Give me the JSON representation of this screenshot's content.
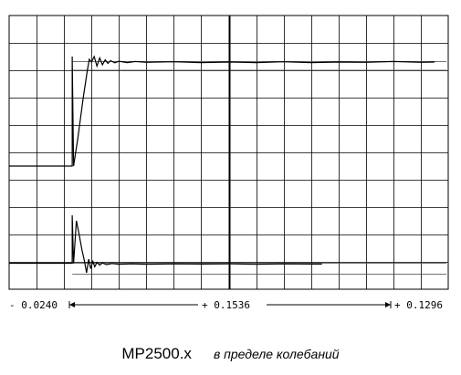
{
  "caption": {
    "model": "MP2500.x",
    "description": "в пределе колебаний"
  },
  "chart_data": {
    "type": "line",
    "grid": true,
    "grid_columns": 16,
    "grid_rows": 10,
    "cursor_division": 8,
    "time_axis": {
      "left_label": "- 0.0240",
      "cursor_label": "+ 0.1536",
      "right_label": "+ 0.1296"
    },
    "series": [
      {
        "ref_levels": [
          8.0,
          8.32
        ],
        "data": [
          [
            0,
            4.5
          ],
          [
            2.3,
            4.5
          ],
          [
            2.3,
            8.5
          ],
          [
            2.35,
            4.5
          ],
          [
            2.5,
            5.5
          ],
          [
            2.7,
            7.0
          ],
          [
            2.85,
            8.0
          ],
          [
            2.92,
            8.4
          ],
          [
            3.0,
            8.3
          ],
          [
            3.1,
            8.5
          ],
          [
            3.2,
            8.15
          ],
          [
            3.3,
            8.45
          ],
          [
            3.4,
            8.2
          ],
          [
            3.5,
            8.38
          ],
          [
            3.6,
            8.25
          ],
          [
            3.7,
            8.35
          ],
          [
            3.85,
            8.27
          ],
          [
            4.0,
            8.33
          ],
          [
            4.3,
            8.28
          ],
          [
            4.6,
            8.32
          ],
          [
            5.0,
            8.29
          ],
          [
            6.0,
            8.31
          ],
          [
            7.0,
            8.28
          ],
          [
            8.0,
            8.3
          ],
          [
            9.0,
            8.28
          ],
          [
            10.0,
            8.31
          ],
          [
            11.0,
            8.28
          ],
          [
            12.0,
            8.3
          ],
          [
            13.0,
            8.29
          ],
          [
            14.0,
            8.32
          ],
          [
            15.0,
            8.29
          ],
          [
            15.5,
            8.3
          ]
        ]
      },
      {
        "ref_levels": [
          0.55,
          0.95
        ],
        "data": [
          [
            0,
            0.95
          ],
          [
            2.3,
            0.95
          ],
          [
            2.3,
            2.7
          ],
          [
            2.35,
            0.95
          ],
          [
            2.45,
            2.5
          ],
          [
            2.55,
            2.0
          ],
          [
            2.65,
            1.45
          ],
          [
            2.75,
            1.0
          ],
          [
            2.82,
            0.6
          ],
          [
            2.9,
            1.1
          ],
          [
            2.97,
            0.75
          ],
          [
            3.05,
            1.02
          ],
          [
            3.12,
            0.82
          ],
          [
            3.2,
            0.98
          ],
          [
            3.3,
            0.88
          ],
          [
            3.4,
            0.96
          ],
          [
            3.55,
            0.9
          ],
          [
            3.75,
            0.94
          ],
          [
            4.0,
            0.91
          ],
          [
            4.5,
            0.93
          ],
          [
            5.0,
            0.91
          ],
          [
            6.0,
            0.93
          ],
          [
            7.0,
            0.92
          ],
          [
            8.0,
            0.93
          ],
          [
            9.0,
            0.91
          ],
          [
            10.0,
            0.93
          ],
          [
            11.0,
            0.92
          ],
          [
            11.4,
            0.92
          ]
        ]
      }
    ]
  }
}
